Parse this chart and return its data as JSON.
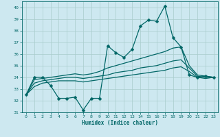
{
  "xlabel": "Humidex (Indice chaleur)",
  "background_color": "#cde8f0",
  "grid_color": "#a8cccc",
  "line_color": "#006666",
  "xlim": [
    -0.5,
    23.5
  ],
  "ylim": [
    31,
    40.5
  ],
  "yticks": [
    31,
    32,
    33,
    34,
    35,
    36,
    37,
    38,
    39,
    40
  ],
  "xticks": [
    0,
    1,
    2,
    3,
    4,
    5,
    6,
    7,
    8,
    9,
    10,
    11,
    12,
    13,
    14,
    15,
    16,
    17,
    18,
    19,
    20,
    21,
    22,
    23
  ],
  "series": [
    {
      "y": [
        32.5,
        34.0,
        34.0,
        33.3,
        32.2,
        32.2,
        32.3,
        31.2,
        32.2,
        32.2,
        36.7,
        36.1,
        35.7,
        36.4,
        38.4,
        38.9,
        38.8,
        40.1,
        37.4,
        36.6,
        34.2,
        34.0,
        34.1,
        34.0
      ],
      "marker": true,
      "linewidth": 0.9,
      "markersize": 2.5
    },
    {
      "y": [
        32.5,
        33.8,
        33.9,
        34.0,
        34.1,
        34.2,
        34.3,
        34.2,
        34.3,
        34.5,
        34.8,
        35.0,
        35.2,
        35.4,
        35.6,
        35.8,
        36.0,
        36.2,
        36.5,
        36.6,
        35.0,
        34.2,
        34.1,
        34.0
      ],
      "marker": false,
      "linewidth": 0.9
    },
    {
      "y": [
        32.5,
        33.5,
        33.7,
        33.8,
        33.9,
        34.0,
        34.0,
        33.9,
        34.0,
        34.1,
        34.2,
        34.4,
        34.5,
        34.6,
        34.8,
        34.9,
        35.0,
        35.2,
        35.4,
        35.5,
        34.8,
        34.1,
        34.0,
        34.0
      ],
      "marker": false,
      "linewidth": 0.9
    },
    {
      "y": [
        32.5,
        33.2,
        33.5,
        33.6,
        33.7,
        33.7,
        33.7,
        33.6,
        33.7,
        33.8,
        33.9,
        34.0,
        34.1,
        34.2,
        34.3,
        34.4,
        34.5,
        34.6,
        34.8,
        34.9,
        34.5,
        34.0,
        33.9,
        34.0
      ],
      "marker": false,
      "linewidth": 0.9
    }
  ]
}
